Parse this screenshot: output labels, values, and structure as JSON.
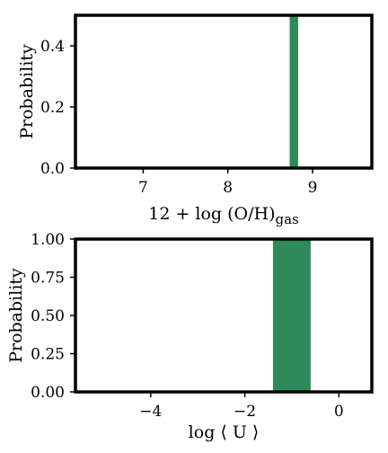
{
  "chart_data": [
    {
      "type": "bar",
      "xlabel": "12 + log (O/H)",
      "xlabel_sub": "gas",
      "ylabel": "Probability",
      "xlim": [
        6.2,
        9.7
      ],
      "ylim": [
        0,
        0.5
      ],
      "xticks": [
        7,
        8,
        9
      ],
      "xtick_labels": [
        "7",
        "8",
        "9"
      ],
      "yticks": [
        0.0,
        0.2,
        0.4
      ],
      "ytick_labels": [
        "0.0",
        "0.2",
        "0.4"
      ],
      "grid": false,
      "bars": [
        {
          "x0": 8.73,
          "x1": 8.83,
          "value": 0.5
        }
      ],
      "color": "#2e8b57"
    },
    {
      "type": "bar",
      "xlabel": "log ⟨ U ⟩",
      "xlabel_sub": "",
      "ylabel": "Probability",
      "xlim": [
        -5.6,
        0.7
      ],
      "ylim": [
        0,
        1.0
      ],
      "xticks": [
        -4,
        -2,
        0
      ],
      "xtick_labels": [
        "−4",
        "−2",
        "0"
      ],
      "yticks": [
        0.0,
        0.25,
        0.5,
        0.75,
        1.0
      ],
      "ytick_labels": [
        "0.00",
        "0.25",
        "0.50",
        "0.75",
        "1.00"
      ],
      "grid": false,
      "bars": [
        {
          "x0": -1.4,
          "x1": -0.6,
          "value": 1.0
        }
      ],
      "color": "#2e8b57"
    }
  ]
}
